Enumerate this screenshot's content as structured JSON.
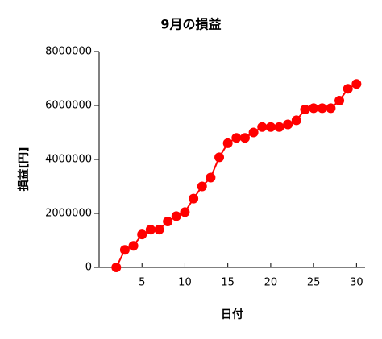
{
  "chart_data": {
    "type": "line",
    "title": "9月の損益",
    "x_label": "日付",
    "y_label": "損益[円]",
    "x": [
      2,
      3,
      4,
      5,
      6,
      7,
      8,
      9,
      10,
      11,
      12,
      13,
      14,
      15,
      16,
      17,
      18,
      19,
      20,
      21,
      22,
      23,
      24,
      25,
      26,
      27,
      28,
      29,
      30
    ],
    "series": [
      {
        "name": "損益",
        "color": "#ff0000",
        "values": [
          0,
          650000,
          800000,
          1220000,
          1400000,
          1400000,
          1700000,
          1900000,
          2050000,
          2550000,
          3000000,
          3330000,
          4080000,
          4600000,
          4800000,
          4800000,
          5000000,
          5200000,
          5200000,
          5200000,
          5300000,
          5450000,
          5850000,
          5900000,
          5900000,
          5900000,
          6180000,
          6620000,
          6800000
        ]
      }
    ],
    "xlim": [
      0,
      31
    ],
    "xticks": [
      5,
      10,
      15,
      20,
      25,
      30
    ],
    "ylim": [
      0,
      8000000
    ],
    "yticks": [
      0,
      2000000,
      4000000,
      6000000,
      8000000
    ],
    "grid": false
  }
}
